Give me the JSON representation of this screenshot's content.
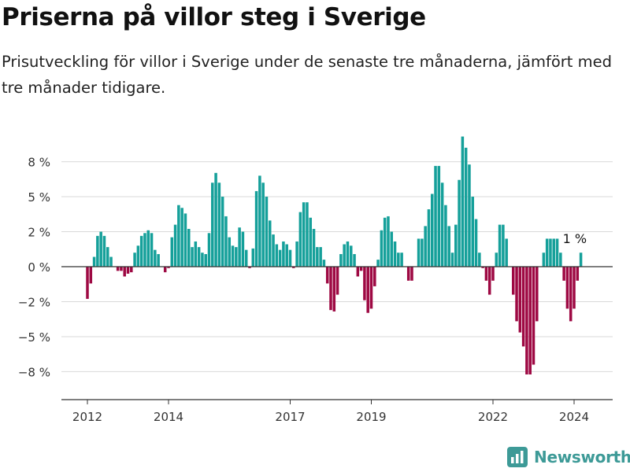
{
  "title": "Priserna på villor steg i Sverige",
  "subtitle": "Prisutveckling för villor i Sverige under de senaste tre månaderna, jämfört med tre månader tidigare.",
  "brand": "Newsworthy",
  "colors": {
    "positive": "#15a09a",
    "negative": "#9e0943",
    "grid": "#d9d9d9",
    "axis": "#333333",
    "brand": "#3d9a97"
  },
  "chart_data": {
    "type": "bar",
    "unit": "%",
    "ylim": [
      -9.5,
      9.5
    ],
    "yticks": [
      {
        "value": 7.5,
        "label": "8 %"
      },
      {
        "value": 5,
        "label": "5 %"
      },
      {
        "value": 2.5,
        "label": "2 %"
      },
      {
        "value": 0,
        "label": "0 %"
      },
      {
        "value": -2.5,
        "label": "−2 %"
      },
      {
        "value": -5,
        "label": "−5 %"
      },
      {
        "value": -7.5,
        "label": "−8 %"
      }
    ],
    "xticks": [
      {
        "date": "2012-01",
        "label": "2012"
      },
      {
        "date": "2014-01",
        "label": "2014"
      },
      {
        "date": "2017-01",
        "label": "2017"
      },
      {
        "date": "2019-01",
        "label": "2019"
      },
      {
        "date": "2022-01",
        "label": "2022"
      },
      {
        "date": "2024-01",
        "label": "2024"
      }
    ],
    "series": [
      {
        "start": "2012-01",
        "frequency": "monthly",
        "values": [
          -2.3,
          -1.2,
          0.7,
          2.2,
          2.5,
          2.2,
          1.4,
          0.7,
          0,
          -0.3,
          -0.3,
          -0.7,
          -0.5,
          -0.4,
          1.0,
          1.5,
          2.2,
          2.4,
          2.6,
          2.4,
          1.2,
          0.9,
          0,
          -0.4,
          -0.1,
          2.1,
          3.0,
          4.4,
          4.2,
          3.8,
          2.7,
          1.4,
          1.8,
          1.4,
          1.0,
          0.9,
          2.4,
          6.0,
          6.7,
          6.0,
          5.0,
          3.6,
          2.1,
          1.5,
          1.4,
          2.8,
          2.5,
          1.2,
          -0.1,
          1.3,
          5.4,
          6.5,
          6.0,
          5.0,
          3.3,
          2.3,
          1.6,
          1.2,
          1.8,
          1.6,
          1.2,
          -0.1,
          1.8,
          3.9,
          4.6,
          4.6,
          3.5,
          2.7,
          1.4,
          1.4,
          0.5,
          -1.2,
          -3.1,
          -3.2,
          -2.0,
          0.9,
          1.6,
          1.8,
          1.5,
          0.9,
          -0.7,
          -0.3,
          -2.4,
          -3.3,
          -3.0,
          -1.4,
          0.5,
          2.6,
          3.5,
          3.6,
          2.5,
          1.8,
          1.0,
          1.0,
          0,
          -1.0,
          -1.0,
          0,
          2.0,
          2.0,
          2.9,
          4.1,
          5.2,
          7.2,
          7.2,
          6.0,
          4.4,
          2.9,
          1.0,
          3.0,
          6.2,
          9.3,
          8.5,
          7.3,
          5.0,
          3.4,
          1.0,
          -0.1,
          -1.0,
          -2.0,
          -1.0,
          1.0,
          3.0,
          3.0,
          2.0,
          0,
          -2.0,
          -3.9,
          -4.7,
          -5.7,
          -7.7,
          -7.7,
          -7.0,
          -3.9,
          0,
          1.0,
          2.0,
          2.0,
          2.0,
          2.0,
          1.0,
          -1.0,
          -3.0,
          -3.9,
          -3.0,
          -1.0,
          1.0
        ]
      }
    ],
    "annotations": [
      {
        "date": "2024-04",
        "label": "1 %"
      }
    ]
  }
}
